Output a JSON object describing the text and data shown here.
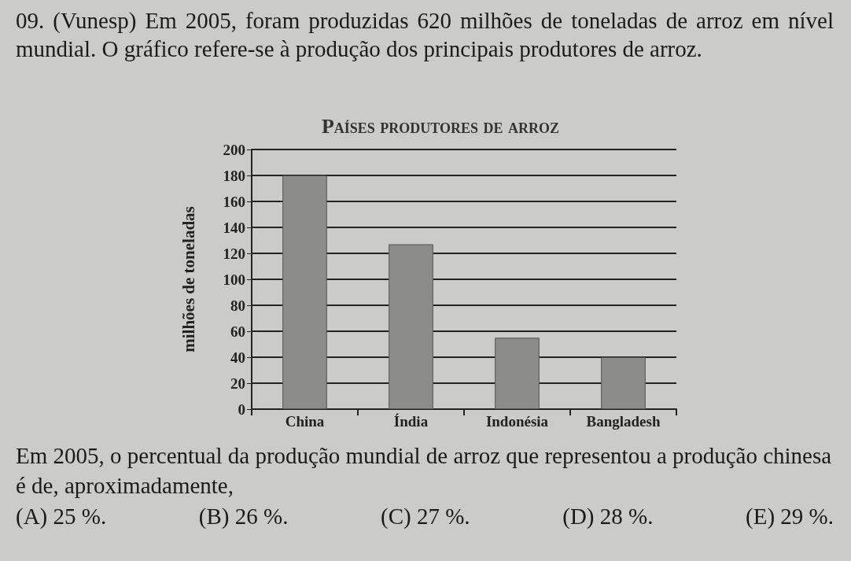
{
  "chart_data": {
    "type": "bar",
    "title": "Países produtores de arroz",
    "ylabel": "milhões de toneladas",
    "categories": [
      "China",
      "Índia",
      "Indonésia",
      "Bangladesh"
    ],
    "values": [
      180,
      127,
      55,
      40
    ],
    "color": "#8c8c8a",
    "ylim": [
      0,
      200
    ],
    "yticks": [
      0,
      20,
      40,
      60,
      80,
      100,
      120,
      140,
      160,
      180,
      200
    ],
    "grid": "y",
    "annotations": [
      "09. (Vunesp) Em 2005, foram produzidas 620 milhões de toneladas de arroz em nível mundial. O gráfico refere-se à produção dos principais produtores de arroz.",
      "Em 2005, o percentual da produção mundial de arroz que representou a produção chinesa é de, aproximadamente,",
      "(A) 25 %.",
      "(B) 26 %.",
      "(C) 27 %.",
      "(D) 28 %.",
      "(E) 29 %."
    ]
  }
}
